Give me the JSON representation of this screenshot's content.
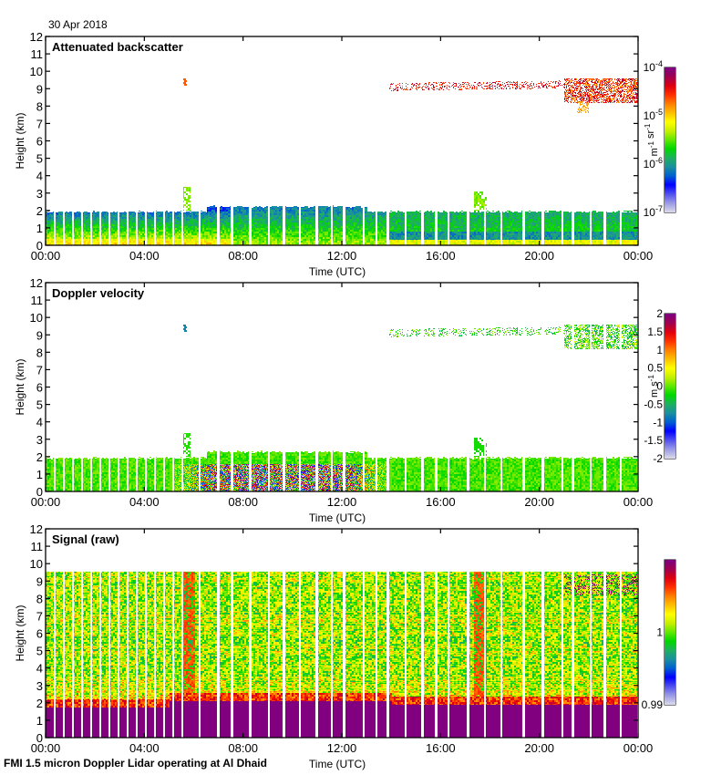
{
  "header": {
    "date": "30 Apr 2018"
  },
  "footer": {
    "caption": "FMI 1.5 micron Doppler Lidar operating at Al Dhaid"
  },
  "chart_data": [
    {
      "type": "heatmap",
      "title": "Attenuated backscatter",
      "xlabel": "Time (UTC)",
      "ylabel": "Height (km)",
      "x_ticks": [
        "00:00",
        "04:00",
        "08:00",
        "12:00",
        "16:00",
        "20:00",
        "00:00"
      ],
      "xlim_hours": [
        0,
        24
      ],
      "y_ticks": [
        "0",
        "1",
        "2",
        "3",
        "4",
        "5",
        "6",
        "7",
        "8",
        "9",
        "10",
        "11",
        "12"
      ],
      "ylim_km": [
        0,
        12
      ],
      "colorbar": {
        "label": "m-1 sr-1",
        "label_parts": [
          {
            "t": "m"
          },
          {
            "sup": "-1"
          },
          {
            "t": " sr"
          },
          {
            "sup": "-1"
          }
        ],
        "scale": "log",
        "range": [
          1e-07,
          0.0001
        ],
        "ticks": [
          {
            "base": "10",
            "exp": "-4",
            "v": 0.0001
          },
          {
            "base": "10",
            "exp": "-5",
            "v": 1e-05
          },
          {
            "base": "10",
            "exp": "-6",
            "v": 1e-06
          },
          {
            "base": "10",
            "exp": "-7",
            "v": 1e-07
          }
        ]
      },
      "features": {
        "boundary_layer_top_km": 2.0,
        "surface_layer": "yellow/orange near surface 00:00-08:00, weaker after",
        "elevated_layer_km": [
          8.5,
          9.5
        ],
        "elevated_layer_hours": [
          13.8,
          24
        ],
        "plume_hours": [
          5.5,
          17.6
        ]
      }
    },
    {
      "type": "heatmap",
      "title": "Doppler velocity",
      "xlabel": "Time (UTC)",
      "ylabel": "Height (km)",
      "x_ticks": [
        "00:00",
        "04:00",
        "08:00",
        "12:00",
        "16:00",
        "20:00",
        "00:00"
      ],
      "xlim_hours": [
        0,
        24
      ],
      "y_ticks": [
        "0",
        "1",
        "2",
        "3",
        "4",
        "5",
        "6",
        "7",
        "8",
        "9",
        "10",
        "11",
        "12"
      ],
      "ylim_km": [
        0,
        12
      ],
      "colorbar": {
        "label": "m s-1",
        "label_parts": [
          {
            "t": "m s"
          },
          {
            "sup": "-1"
          }
        ],
        "scale": "linear",
        "range": [
          -2,
          2
        ],
        "ticks": [
          {
            "base": "2",
            "v": 2
          },
          {
            "base": "1.5",
            "v": 1.5
          },
          {
            "base": "1",
            "v": 1
          },
          {
            "base": "0.5",
            "v": 0.5
          },
          {
            "base": "0",
            "v": 0
          },
          {
            "base": "-0.5",
            "v": -0.5
          },
          {
            "base": "-1",
            "v": -1
          },
          {
            "base": "-1.5",
            "v": -1.5
          },
          {
            "base": "-2",
            "v": -2
          }
        ]
      },
      "features": {
        "boundary_layer_top_km": 2.0,
        "convective_turbulence_hours": [
          5,
          14
        ]
      }
    },
    {
      "type": "heatmap",
      "title": "Signal (raw)",
      "xlabel": "Time (UTC)",
      "ylabel": "Height (km)",
      "x_ticks": [
        "00:00",
        "04:00",
        "08:00",
        "12:00",
        "16:00",
        "20:00",
        "00:00"
      ],
      "xlim_hours": [
        0,
        24
      ],
      "y_ticks": [
        "0",
        "1",
        "2",
        "3",
        "4",
        "5",
        "6",
        "7",
        "8",
        "9",
        "10",
        "11",
        "12"
      ],
      "ylim_km": [
        0,
        12
      ],
      "colorbar": {
        "label": "",
        "label_parts": [],
        "scale": "linear",
        "range": [
          0.99,
          1.01
        ],
        "ticks": [
          {
            "base": "1",
            "v": 1.0
          },
          {
            "base": "0.99",
            "v": 0.99
          }
        ]
      },
      "features": {
        "data_top_km": 9.55,
        "saturated_below_km": 1.9
      }
    }
  ],
  "colormap": [
    "#d9d9eb",
    "#9a9ae6",
    "#5050f0",
    "#0000ff",
    "#0060d0",
    "#1a90a0",
    "#20b060",
    "#00d800",
    "#60e800",
    "#c8f000",
    "#ffff00",
    "#ffc000",
    "#ff8000",
    "#ff3000",
    "#e00010",
    "#a00050",
    "#800080"
  ]
}
